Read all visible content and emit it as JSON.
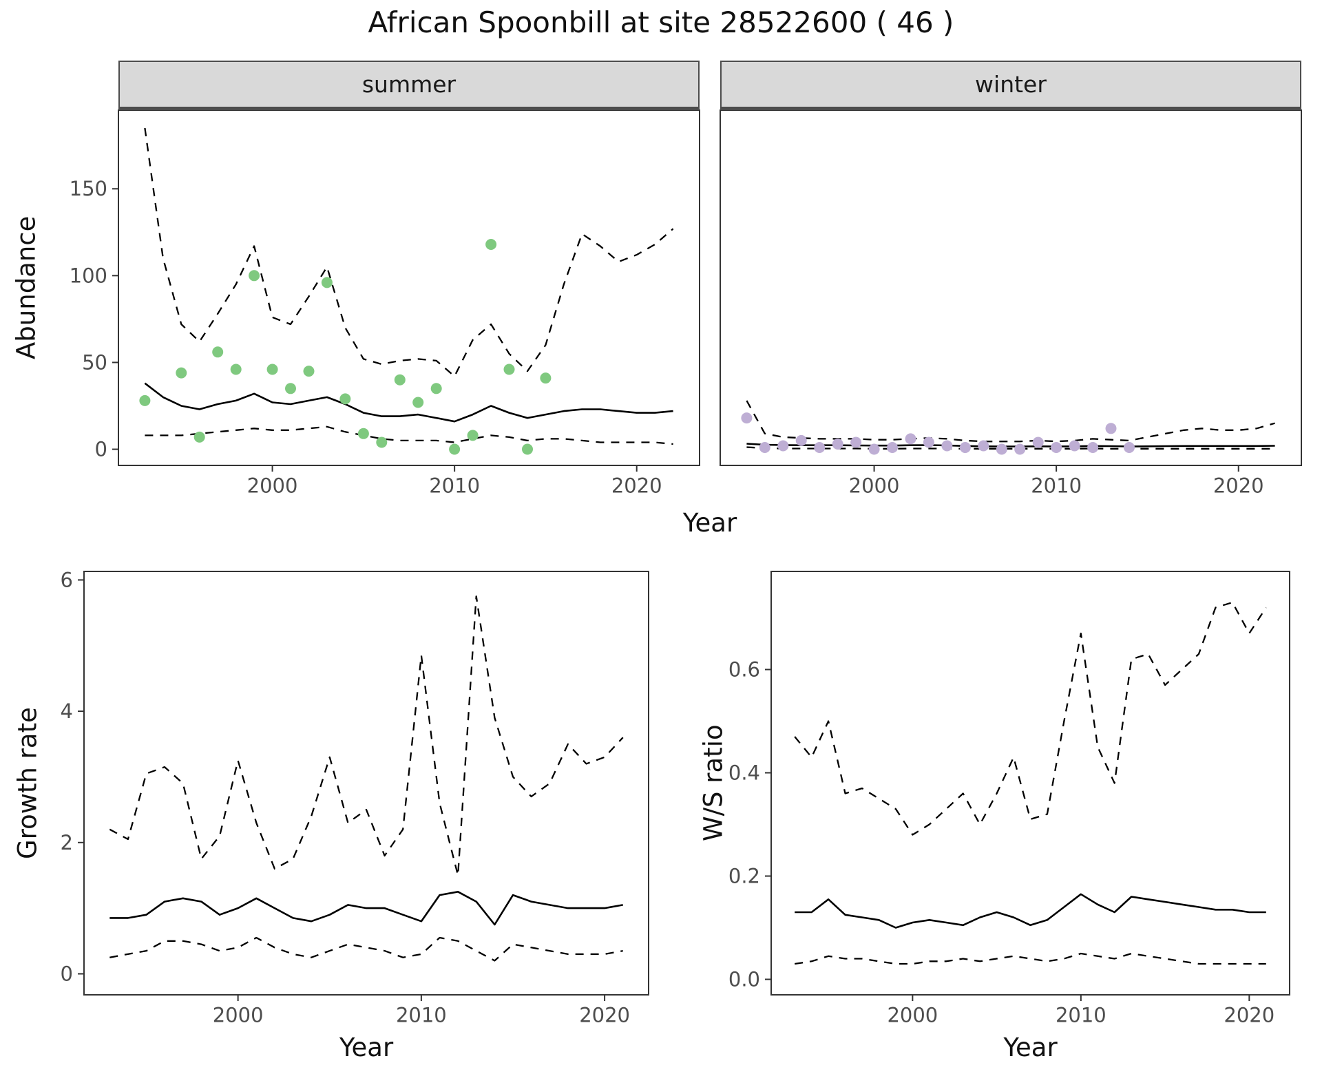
{
  "title": "African Spoonbill at site 28522600 ( 46 )",
  "facets": [
    "summer",
    "winter"
  ],
  "axes": {
    "abundance": "Abundance",
    "growth": "Growth rate",
    "ws": "W/S ratio",
    "year": "Year"
  },
  "colors": {
    "summer_point": "#7FC97F",
    "winter_point": "#BEAED4",
    "line": "#000000",
    "panel_border": "#333333",
    "strip_bg": "#D9D9D9",
    "tick_text": "#4D4D4D"
  },
  "chart_data": [
    {
      "name": "abundance-summer",
      "type": "line",
      "facet": "summer",
      "xlabel": "Year",
      "ylabel": "Abundance",
      "xlim": [
        1991.55,
        2023.45
      ],
      "ylim": [
        -9.3,
        195.3
      ],
      "xticks": [
        2000,
        2010,
        2020
      ],
      "xtick_labels": [
        "2000",
        "2010",
        "2020"
      ],
      "yticks": [
        0,
        50,
        100,
        150
      ],
      "ytick_labels": [
        "0",
        "50",
        "100",
        "150"
      ],
      "x": [
        1993,
        1994,
        1995,
        1996,
        1997,
        1998,
        1999,
        2000,
        2001,
        2002,
        2003,
        2004,
        2005,
        2006,
        2007,
        2008,
        2009,
        2010,
        2011,
        2012,
        2013,
        2014,
        2015,
        2016,
        2017,
        2018,
        2019,
        2020,
        2021,
        2022
      ],
      "series": [
        {
          "name": "fit",
          "style": "solid",
          "values": [
            38,
            30,
            25,
            23,
            26,
            28,
            32,
            27,
            26,
            28,
            30,
            26,
            21,
            19,
            19,
            20,
            18,
            16,
            20,
            25,
            21,
            18,
            20,
            22,
            23,
            23,
            22,
            21,
            21,
            22
          ]
        },
        {
          "name": "lower_ci",
          "style": "dashed",
          "values": [
            8,
            8,
            8,
            9,
            10,
            11,
            12,
            11,
            11,
            12,
            13,
            10,
            8,
            6,
            5,
            5,
            5,
            4,
            6,
            8,
            7,
            5,
            6,
            6,
            5,
            4,
            4,
            4,
            4,
            3
          ]
        },
        {
          "name": "upper_ci",
          "style": "dashed",
          "values": [
            185,
            110,
            72,
            62,
            78,
            95,
            117,
            76,
            72,
            88,
            105,
            70,
            52,
            49,
            51,
            52,
            51,
            42,
            63,
            72,
            55,
            45,
            60,
            95,
            124,
            117,
            108,
            112,
            118,
            127
          ]
        }
      ],
      "points": {
        "name": "observed",
        "color_key": "summer_point",
        "x": [
          1993,
          1995,
          1996,
          1997,
          1998,
          1999,
          2000,
          2001,
          2002,
          2003,
          2004,
          2005,
          2006,
          2007,
          2008,
          2009,
          2010,
          2011,
          2012,
          2013,
          2014,
          2015
        ],
        "y": [
          28,
          44,
          7,
          56,
          46,
          100,
          46,
          35,
          45,
          96,
          29,
          9,
          4,
          40,
          27,
          35,
          0,
          8,
          118,
          46,
          0,
          41
        ]
      }
    },
    {
      "name": "abundance-winter",
      "type": "line",
      "facet": "winter",
      "xlabel": "Year",
      "ylabel": "Abundance",
      "xlim": [
        1991.55,
        2023.45
      ],
      "ylim": [
        -9.3,
        195.3
      ],
      "xticks": [
        2000,
        2010,
        2020
      ],
      "xtick_labels": [
        "2000",
        "2010",
        "2020"
      ],
      "yticks": [
        0,
        50,
        100,
        150
      ],
      "ytick_labels": [
        "0",
        "50",
        "100",
        "150"
      ],
      "x": [
        1993,
        1994,
        1995,
        1996,
        1997,
        1998,
        1999,
        2000,
        2001,
        2002,
        2003,
        2004,
        2005,
        2006,
        2007,
        2008,
        2009,
        2010,
        2011,
        2012,
        2013,
        2014,
        2015,
        2016,
        2017,
        2018,
        2019,
        2020,
        2021,
        2022
      ],
      "series": [
        {
          "name": "fit",
          "style": "solid",
          "values": [
            3.2,
            2.6,
            2.4,
            2.3,
            2.3,
            2.3,
            2.2,
            2.1,
            2.1,
            2.3,
            2.4,
            2.2,
            1.9,
            1.7,
            1.6,
            1.6,
            1.7,
            1.6,
            1.7,
            1.9,
            1.8,
            1.6,
            1.7,
            1.8,
            1.9,
            1.9,
            1.9,
            1.9,
            1.9,
            2.0
          ]
        },
        {
          "name": "lower_ci",
          "style": "dashed",
          "values": [
            1.2,
            0.6,
            0.4,
            0.4,
            0.4,
            0.4,
            0.4,
            0.3,
            0.3,
            0.4,
            0.4,
            0.4,
            0.3,
            0.3,
            0.3,
            0.3,
            0.3,
            0.3,
            0.3,
            0.4,
            0.3,
            0.3,
            0.3,
            0.3,
            0.3,
            0.3,
            0.3,
            0.3,
            0.3,
            0.3
          ]
        },
        {
          "name": "upper_ci",
          "style": "dashed",
          "values": [
            28,
            9,
            7,
            6.5,
            6,
            6,
            6,
            5.5,
            5.5,
            6,
            6.5,
            6,
            5,
            4.5,
            4.5,
            4.5,
            5,
            4.5,
            5,
            6,
            5.5,
            5,
            7,
            9,
            11,
            12,
            11,
            11,
            12,
            15
          ]
        }
      ],
      "points": {
        "name": "observed",
        "color_key": "winter_point",
        "x": [
          1993,
          1994,
          1995,
          1996,
          1997,
          1998,
          1999,
          2000,
          2001,
          2002,
          2003,
          2004,
          2005,
          2006,
          2007,
          2008,
          2009,
          2010,
          2011,
          2012,
          2013,
          2014
        ],
        "y": [
          18,
          1,
          2,
          5,
          1,
          3,
          4,
          0,
          1,
          6,
          4,
          2,
          1,
          2,
          0,
          0,
          4,
          1,
          2,
          1,
          12,
          1
        ]
      }
    },
    {
      "name": "growth-rate",
      "type": "line",
      "xlabel": "Year",
      "ylabel": "Growth rate",
      "xlim": [
        1991.6,
        2022.4
      ],
      "ylim": [
        -0.32,
        6.13
      ],
      "xticks": [
        2000,
        2010,
        2020
      ],
      "xtick_labels": [
        "2000",
        "2010",
        "2020"
      ],
      "yticks": [
        0,
        2,
        4,
        6
      ],
      "ytick_labels": [
        "0",
        "2",
        "4",
        "6"
      ],
      "x": [
        1993,
        1994,
        1995,
        1996,
        1997,
        1998,
        1999,
        2000,
        2001,
        2002,
        2003,
        2004,
        2005,
        2006,
        2007,
        2008,
        2009,
        2010,
        2011,
        2012,
        2013,
        2014,
        2015,
        2016,
        2017,
        2018,
        2019,
        2020,
        2021
      ],
      "series": [
        {
          "name": "fit",
          "style": "solid",
          "values": [
            0.85,
            0.85,
            0.9,
            1.1,
            1.15,
            1.1,
            0.9,
            1.0,
            1.15,
            1.0,
            0.85,
            0.8,
            0.9,
            1.05,
            1.0,
            1.0,
            0.9,
            0.8,
            1.2,
            1.25,
            1.1,
            0.75,
            1.2,
            1.1,
            1.05,
            1.0,
            1.0,
            1.0,
            1.05
          ]
        },
        {
          "name": "lower_ci",
          "style": "dashed",
          "values": [
            0.25,
            0.3,
            0.35,
            0.5,
            0.5,
            0.45,
            0.35,
            0.4,
            0.55,
            0.4,
            0.3,
            0.25,
            0.35,
            0.45,
            0.4,
            0.35,
            0.25,
            0.3,
            0.55,
            0.5,
            0.35,
            0.2,
            0.45,
            0.4,
            0.35,
            0.3,
            0.3,
            0.3,
            0.35
          ]
        },
        {
          "name": "upper_ci",
          "style": "dashed",
          "values": [
            2.2,
            2.05,
            3.05,
            3.15,
            2.9,
            1.75,
            2.1,
            3.25,
            2.3,
            1.6,
            1.75,
            2.4,
            3.3,
            2.3,
            2.5,
            1.8,
            2.2,
            4.85,
            2.6,
            1.5,
            5.75,
            3.9,
            3.0,
            2.7,
            2.9,
            3.5,
            3.2,
            3.3,
            3.6
          ]
        }
      ]
    },
    {
      "name": "ws-ratio",
      "type": "line",
      "xlabel": "Year",
      "ylabel": "W/S ratio",
      "xlim": [
        1991.6,
        2022.4
      ],
      "ylim": [
        -0.03,
        0.79
      ],
      "xticks": [
        2000,
        2010,
        2020
      ],
      "xtick_labels": [
        "2000",
        "2010",
        "2020"
      ],
      "yticks": [
        0.0,
        0.2,
        0.4,
        0.6
      ],
      "ytick_labels": [
        "0.0",
        "0.2",
        "0.4",
        "0.6"
      ],
      "x": [
        1993,
        1994,
        1995,
        1996,
        1997,
        1998,
        1999,
        2000,
        2001,
        2002,
        2003,
        2004,
        2005,
        2006,
        2007,
        2008,
        2009,
        2010,
        2011,
        2012,
        2013,
        2014,
        2015,
        2016,
        2017,
        2018,
        2019,
        2020,
        2021
      ],
      "series": [
        {
          "name": "fit",
          "style": "solid",
          "values": [
            0.13,
            0.13,
            0.155,
            0.125,
            0.12,
            0.115,
            0.1,
            0.11,
            0.115,
            0.11,
            0.105,
            0.12,
            0.13,
            0.12,
            0.105,
            0.115,
            0.14,
            0.165,
            0.145,
            0.13,
            0.16,
            0.155,
            0.15,
            0.145,
            0.14,
            0.135,
            0.135,
            0.13,
            0.13
          ]
        },
        {
          "name": "lower_ci",
          "style": "dashed",
          "values": [
            0.03,
            0.035,
            0.045,
            0.04,
            0.04,
            0.035,
            0.03,
            0.03,
            0.035,
            0.035,
            0.04,
            0.035,
            0.04,
            0.045,
            0.04,
            0.035,
            0.04,
            0.05,
            0.045,
            0.04,
            0.05,
            0.045,
            0.04,
            0.035,
            0.03,
            0.03,
            0.03,
            0.03,
            0.03
          ]
        },
        {
          "name": "upper_ci",
          "style": "dashed",
          "values": [
            0.47,
            0.43,
            0.5,
            0.36,
            0.37,
            0.35,
            0.33,
            0.28,
            0.3,
            0.33,
            0.36,
            0.3,
            0.36,
            0.43,
            0.31,
            0.32,
            0.5,
            0.67,
            0.45,
            0.38,
            0.62,
            0.63,
            0.57,
            0.6,
            0.63,
            0.72,
            0.73,
            0.67,
            0.72
          ]
        }
      ]
    }
  ]
}
